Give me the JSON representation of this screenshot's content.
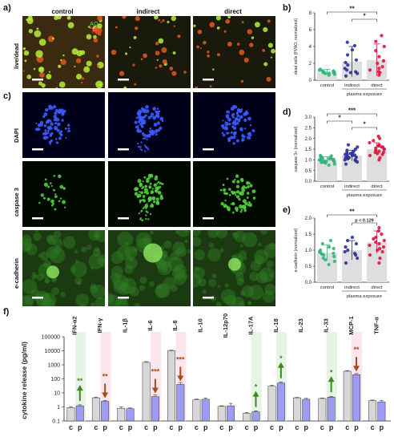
{
  "panel_labels": {
    "a": "a)",
    "b": "b)",
    "c": "c)",
    "d": "d)",
    "e": "e)",
    "f": "f)"
  },
  "column_headers": [
    "control",
    "indirect",
    "direct"
  ],
  "row_labels": [
    "live/dead",
    "DAPI",
    "caspase 3",
    "e-cadherin"
  ],
  "legend_a": {
    "ao": "AO",
    "pi": "PI"
  },
  "colors": {
    "ao": "#2bd12b",
    "pi": "#ff3b2f",
    "control": "#2db67a",
    "indirect": "#2a2f97",
    "direct": "#d8163f",
    "gray_bar": "#d7d7d7",
    "blue_bar": "#9d9bf2",
    "arrow_up": "#3a8a1f",
    "arrow_down": "#a64a16"
  },
  "chart_data": [
    {
      "id": "b",
      "type": "scatter",
      "ylabel": "dead cells (PI/AO, normalized)",
      "categories": [
        "control",
        "indirect",
        "direct"
      ],
      "group_label": "plasma exposure",
      "ylim": [
        0,
        8
      ],
      "yticks": [
        0,
        2,
        4,
        6,
        8
      ],
      "means": [
        1.0,
        2.2,
        2.4
      ],
      "sd": [
        0.3,
        1.8,
        1.9
      ],
      "points": [
        [
          0.6,
          0.7,
          0.8,
          0.9,
          1.0,
          1.0,
          1.1,
          1.2,
          1.3,
          0.9,
          0.8,
          1.1
        ],
        [
          0.5,
          0.8,
          1.0,
          1.4,
          1.8,
          2.1,
          2.4,
          3.0,
          3.6,
          4.1,
          4.5,
          0.9,
          1.2
        ],
        [
          0.6,
          0.9,
          1.2,
          1.6,
          2.0,
          2.3,
          2.8,
          3.5,
          4.0,
          4.6,
          5.3,
          1.0,
          1.4
        ]
      ],
      "significance": [
        {
          "from": 0,
          "to": 2,
          "label": "**"
        },
        {
          "from": 1,
          "to": 2,
          "label": "*"
        }
      ]
    },
    {
      "id": "d",
      "type": "scatter",
      "ylabel": "caspase 3+ (normalized)",
      "categories": [
        "control",
        "indirect",
        "direct"
      ],
      "group_label": "plasma exposure",
      "ylim": [
        0.0,
        3.0
      ],
      "yticks": [
        0.0,
        0.5,
        1.0,
        1.5,
        2.0,
        2.5,
        3.0
      ],
      "means": [
        1.0,
        1.2,
        1.5
      ],
      "sd": [
        0.15,
        0.25,
        0.3
      ],
      "points": [
        [
          0.75,
          0.8,
          0.85,
          0.9,
          0.92,
          0.95,
          0.97,
          1.0,
          1.0,
          1.02,
          1.05,
          1.08,
          1.1,
          1.12,
          1.15,
          1.18,
          1.2,
          0.88,
          0.93,
          1.05
        ],
        [
          0.8,
          0.9,
          0.95,
          1.0,
          1.05,
          1.1,
          1.12,
          1.15,
          1.2,
          1.22,
          1.25,
          1.3,
          1.35,
          1.4,
          1.45,
          1.5,
          1.6,
          1.7,
          1.0,
          1.1,
          1.25,
          1.3
        ],
        [
          1.0,
          1.1,
          1.2,
          1.25,
          1.3,
          1.35,
          1.4,
          1.45,
          1.5,
          1.55,
          1.6,
          1.65,
          1.7,
          1.8,
          1.9,
          2.0,
          2.1,
          1.35,
          1.5,
          1.6
        ]
      ],
      "significance": [
        {
          "from": 0,
          "to": 2,
          "label": "***"
        },
        {
          "from": 0,
          "to": 1,
          "label": "*"
        },
        {
          "from": 1,
          "to": 2,
          "label": "*"
        }
      ]
    },
    {
      "id": "e",
      "type": "scatter",
      "ylabel": "e-cadherin (normalized)",
      "categories": [
        "control",
        "indirect",
        "direct"
      ],
      "group_label": "plasma exposure",
      "ylim": [
        0.0,
        2.0
      ],
      "yticks": [
        0.0,
        0.5,
        1.0,
        1.5,
        2.0
      ],
      "means": [
        0.92,
        1.0,
        1.25
      ],
      "sd": [
        0.25,
        0.3,
        0.35
      ],
      "points": [
        [
          0.55,
          0.65,
          0.7,
          0.75,
          0.8,
          0.85,
          0.9,
          0.95,
          1.0,
          1.05,
          1.1,
          1.2,
          1.3,
          0.88,
          0.92
        ],
        [
          0.6,
          0.75,
          0.85,
          0.95,
          1.0,
          1.1,
          1.2,
          1.3,
          1.4,
          0.9
        ],
        [
          0.6,
          0.75,
          0.85,
          0.95,
          1.0,
          1.1,
          1.2,
          1.25,
          1.3,
          1.4,
          1.5,
          1.6,
          1.7,
          1.15,
          1.35,
          1.05
        ]
      ],
      "significance": [
        {
          "from": 0,
          "to": 2,
          "label": "**"
        },
        {
          "from": 1,
          "to": 2,
          "label": "p < 0.129"
        }
      ]
    },
    {
      "id": "f",
      "type": "bar",
      "ylabel": "cytokine release (pg/ml)",
      "scale": "log",
      "ylim": [
        0.1,
        100000
      ],
      "yticks": [
        "0.1",
        "1",
        "10",
        "100",
        "1000",
        "10000",
        "100000"
      ],
      "cytokines": [
        "IFN-α2",
        "IFN-γ",
        "IL-1β",
        "IL-6",
        "IL-8",
        "IL-10",
        "IL-12p70",
        "IL-17A",
        "IL-18",
        "IL-23",
        "IL-33",
        "MCP-1",
        "TNF-α"
      ],
      "bar_labels": [
        "c",
        "p"
      ],
      "series": [
        {
          "name": "c",
          "values": [
            0.9,
            4.5,
            0.8,
            1500,
            10000,
            3.2,
            1.1,
            0.35,
            30,
            4.5,
            4.0,
            350,
            2.8
          ]
        },
        {
          "name": "p",
          "values": [
            1.2,
            2.5,
            0.75,
            5.5,
            40,
            3.5,
            1.2,
            0.45,
            50,
            3.5,
            5.0,
            200,
            2.3
          ]
        }
      ],
      "error": [
        [
          0.15,
          0.2
        ],
        [
          0.5,
          0.4
        ],
        [
          0.2,
          0.1
        ],
        [
          200,
          1.5
        ],
        [
          1000,
          15
        ],
        [
          0.4,
          0.8
        ],
        [
          0.1,
          0.6
        ],
        [
          0.05,
          0.08
        ],
        [
          4,
          8
        ],
        [
          0.3,
          0.6
        ],
        [
          0.3,
          0.5
        ],
        [
          40,
          40
        ],
        [
          0.3,
          0.5
        ]
      ],
      "annotations": [
        {
          "index": 0,
          "label": "**",
          "direction": "up"
        },
        {
          "index": 1,
          "label": "**",
          "direction": "down"
        },
        {
          "index": 3,
          "label": "***",
          "direction": "down"
        },
        {
          "index": 4,
          "label": "***",
          "direction": "down"
        },
        {
          "index": 7,
          "label": "*",
          "direction": "up"
        },
        {
          "index": 8,
          "label": "*",
          "direction": "up"
        },
        {
          "index": 10,
          "label": "*",
          "direction": "up"
        },
        {
          "index": 11,
          "label": "**",
          "direction": "down"
        }
      ]
    }
  ]
}
